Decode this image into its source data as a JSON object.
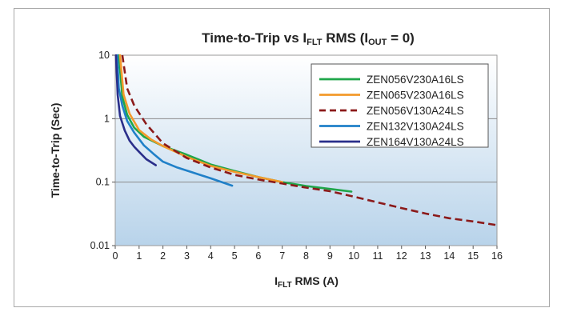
{
  "chart_data": {
    "type": "line",
    "title": {
      "main": "Time-to-Trip vs I",
      "main_sub": "FLT",
      "rest": " RMS (I",
      "rest_sub": "OUT",
      "end": " = 0)"
    },
    "xlabel": {
      "main": "I",
      "sub": "FLT",
      "rest": " RMS (A)"
    },
    "ylabel": "Time-to-Trip (Sec)",
    "x_scale": "linear",
    "y_scale": "log",
    "xlim": [
      0,
      16
    ],
    "ylim": [
      0.01,
      10
    ],
    "x_ticks": [
      0,
      1,
      2,
      3,
      4,
      5,
      6,
      7,
      8,
      9,
      10,
      11,
      12,
      13,
      14,
      15,
      16
    ],
    "y_ticks": [
      0.01,
      0.1,
      1,
      10
    ],
    "y_tick_labels": [
      "0.01",
      "0.1",
      "1",
      "10"
    ],
    "grid": "horizontal",
    "legend_position": "top-right",
    "series": [
      {
        "name": "ZEN056V230A16LS",
        "color": "#1fa64a",
        "dash": "solid",
        "points": [
          [
            0.15,
            10
          ],
          [
            0.3,
            2.2
          ],
          [
            0.5,
            1.15
          ],
          [
            0.8,
            0.72
          ],
          [
            1.2,
            0.52
          ],
          [
            2,
            0.37
          ],
          [
            3,
            0.27
          ],
          [
            4,
            0.19
          ],
          [
            5,
            0.15
          ],
          [
            6,
            0.12
          ],
          [
            7,
            0.1
          ],
          [
            8,
            0.087
          ],
          [
            9,
            0.078
          ],
          [
            9.9,
            0.071
          ]
        ]
      },
      {
        "name": "ZEN065V230A16LS",
        "color": "#f39a2b",
        "dash": "solid",
        "points": [
          [
            0.2,
            10
          ],
          [
            0.35,
            2.4
          ],
          [
            0.6,
            1.2
          ],
          [
            1,
            0.66
          ],
          [
            1.5,
            0.47
          ],
          [
            2,
            0.37
          ],
          [
            3,
            0.25
          ],
          [
            4,
            0.18
          ],
          [
            5,
            0.145
          ],
          [
            6,
            0.12
          ],
          [
            7,
            0.1
          ]
        ]
      },
      {
        "name": "ZEN056V130A24LS",
        "color": "#8b1a1a",
        "dash": "dashed",
        "points": [
          [
            0.3,
            10
          ],
          [
            0.5,
            3
          ],
          [
            0.8,
            1.6
          ],
          [
            1.3,
            0.82
          ],
          [
            2,
            0.41
          ],
          [
            3,
            0.24
          ],
          [
            4,
            0.17
          ],
          [
            5,
            0.13
          ],
          [
            6,
            0.11
          ],
          [
            7,
            0.095
          ],
          [
            8,
            0.082
          ],
          [
            9,
            0.072
          ],
          [
            10,
            0.059
          ],
          [
            11,
            0.048
          ],
          [
            12,
            0.039
          ],
          [
            13,
            0.032
          ],
          [
            14,
            0.027
          ],
          [
            15,
            0.024
          ],
          [
            16,
            0.021
          ]
        ]
      },
      {
        "name": "ZEN132V130A24LS",
        "color": "#2080c8",
        "dash": "solid",
        "points": [
          [
            0.08,
            10
          ],
          [
            0.15,
            3
          ],
          [
            0.3,
            1.6
          ],
          [
            0.5,
            0.92
          ],
          [
            0.8,
            0.6
          ],
          [
            1.2,
            0.38
          ],
          [
            1.6,
            0.28
          ],
          [
            2,
            0.21
          ],
          [
            2.6,
            0.17
          ],
          [
            3.3,
            0.14
          ],
          [
            4,
            0.115
          ],
          [
            4.9,
            0.088
          ]
        ]
      },
      {
        "name": "ZEN164V130A24LS",
        "color": "#2a2e8a",
        "dash": "solid",
        "points": [
          [
            0.03,
            10
          ],
          [
            0.1,
            2.4
          ],
          [
            0.2,
            1.1
          ],
          [
            0.4,
            0.65
          ],
          [
            0.6,
            0.45
          ],
          [
            0.8,
            0.36
          ],
          [
            1,
            0.3
          ],
          [
            1.3,
            0.23
          ],
          [
            1.7,
            0.185
          ]
        ]
      }
    ]
  }
}
